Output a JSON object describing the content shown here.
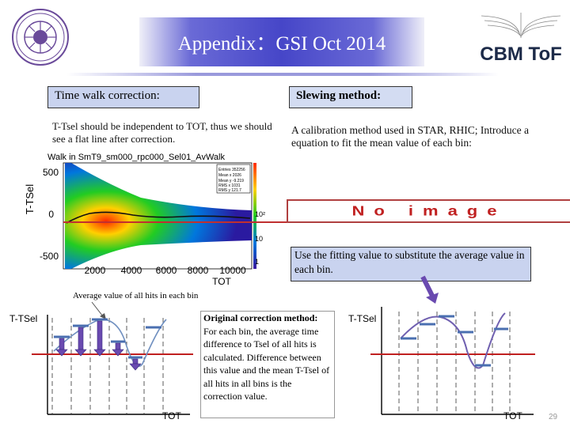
{
  "header": {
    "title": "Appendix：GSI Oct 2014"
  },
  "logos": {
    "right_text": "CBM ToF"
  },
  "left": {
    "label": "Time walk correction:",
    "description": "T-Tsel should be independent to TOT, thus we should see a flat line after correction.",
    "plot": {
      "title": "Walk in SmT9_sm000_rpc000_Sel01_AvWalk",
      "ylabel": "T-TSel",
      "xlabel": "TOT",
      "y_ticks": [
        "500",
        "0",
        "-500"
      ],
      "x_ticks": [
        "2000",
        "4000",
        "6000",
        "8000",
        "10000"
      ],
      "z_ticks": [
        "10²",
        "10",
        "1"
      ],
      "stats": [
        "Entries 352256",
        "Mean x 2026",
        "Mean y -9.219",
        "RMS x 1031",
        "RMS y 121.7"
      ]
    }
  },
  "right": {
    "label": "Slewing method:",
    "description": "A calibration method used in STAR, RHIC; Introduce a equation  to fit the mean value of each bin:",
    "noimage_text": "No image",
    "fit_text": "Use the fitting value to substitute the average value in each bin."
  },
  "bottom": {
    "avg_label": "Average value of all hits in each bin",
    "orig_title": "Original correction method:",
    "orig_text": "For each bin, the average time difference to Tsel of all hits is calculated. Difference between this value and the mean T-Tsel of all hits in all bins is the correction value.",
    "left_ylabel": "T-TSel",
    "left_xlabel": "TOT",
    "right_ylabel": "T-TSel",
    "right_xlabel": "TOT"
  },
  "page_number": "29"
}
